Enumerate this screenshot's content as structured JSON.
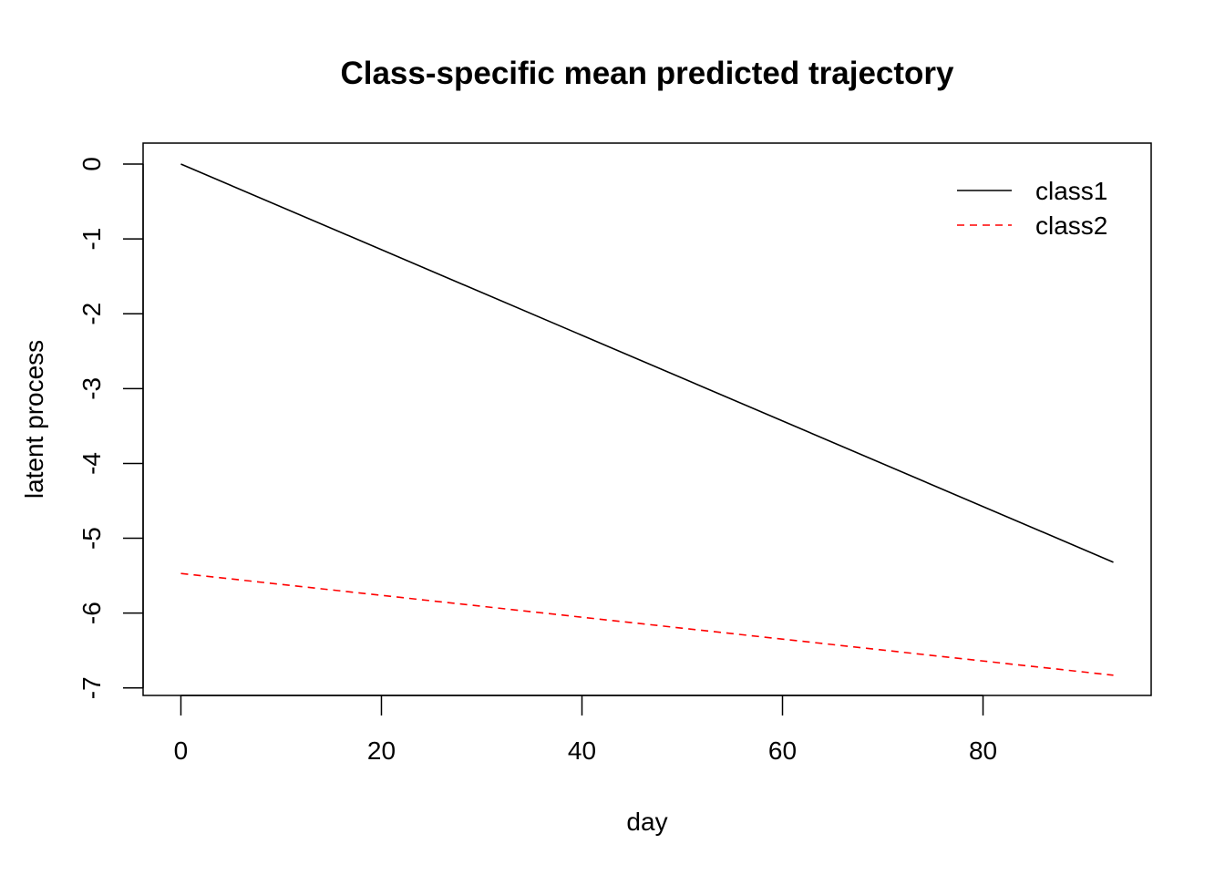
{
  "chart_data": {
    "type": "line",
    "title": "Class-specific mean predicted trajectory",
    "xlabel": "day",
    "ylabel": "latent process",
    "xlim": [
      -3.77,
      96.77
    ],
    "ylim": [
      -7.1,
      0.28
    ],
    "x_ticks": [
      0,
      20,
      40,
      60,
      80
    ],
    "y_ticks": [
      0,
      -1,
      -2,
      -3,
      -4,
      -5,
      -6,
      -7
    ],
    "grid": false,
    "legend_position": "top-right",
    "series": [
      {
        "name": "class1",
        "x": [
          0,
          93
        ],
        "y": [
          0.0,
          -5.32
        ],
        "color": "#000000",
        "style": "solid"
      },
      {
        "name": "class2",
        "x": [
          0,
          93
        ],
        "y": [
          -5.47,
          -6.83
        ],
        "color": "#ff0000",
        "style": "dashed"
      }
    ]
  }
}
